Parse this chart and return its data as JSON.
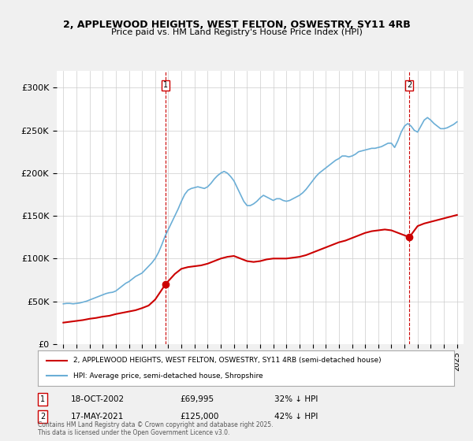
{
  "title_line1": "2, APPLEWOOD HEIGHTS, WEST FELTON, OSWESTRY, SY11 4RB",
  "title_line2": "Price paid vs. HM Land Registry's House Price Index (HPI)",
  "ylabel": "",
  "background_color": "#f0f0f0",
  "plot_bg_color": "#ffffff",
  "red_line_label": "2, APPLEWOOD HEIGHTS, WEST FELTON, OSWESTRY, SY11 4RB (semi-detached house)",
  "blue_line_label": "HPI: Average price, semi-detached house, Shropshire",
  "annotations": [
    {
      "num": "1",
      "date": "18-OCT-2002",
      "price": "£69,995",
      "hpi": "32% ↓ HPI",
      "x": 2002.79,
      "y_red": 69995
    },
    {
      "num": "2",
      "date": "17-MAY-2021",
      "price": "£125,000",
      "hpi": "42% ↓ HPI",
      "x": 2021.37,
      "y_red": 125000
    }
  ],
  "copyright_text": "Contains HM Land Registry data © Crown copyright and database right 2025.\nThis data is licensed under the Open Government Licence v3.0.",
  "ylim": [
    0,
    320000
  ],
  "xlim_start": 1994.5,
  "xlim_end": 2025.5,
  "yticks": [
    0,
    50000,
    100000,
    150000,
    200000,
    250000,
    300000
  ],
  "ytick_labels": [
    "£0",
    "£50K",
    "£100K",
    "£150K",
    "£200K",
    "£250K",
    "£300K"
  ],
  "xticks": [
    1995,
    1996,
    1997,
    1998,
    1999,
    2000,
    2001,
    2002,
    2003,
    2004,
    2005,
    2006,
    2007,
    2008,
    2009,
    2010,
    2011,
    2012,
    2013,
    2014,
    2015,
    2016,
    2017,
    2018,
    2019,
    2020,
    2021,
    2022,
    2023,
    2024,
    2025
  ],
  "red_color": "#cc0000",
  "blue_color": "#6baed6",
  "marker_color_red": "#cc0000",
  "grid_color": "#cccccc",
  "hpi_data": {
    "years": [
      1995.0,
      1995.25,
      1995.5,
      1995.75,
      1996.0,
      1996.25,
      1996.5,
      1996.75,
      1997.0,
      1997.25,
      1997.5,
      1997.75,
      1998.0,
      1998.25,
      1998.5,
      1998.75,
      1999.0,
      1999.25,
      1999.5,
      1999.75,
      2000.0,
      2000.25,
      2000.5,
      2000.75,
      2001.0,
      2001.25,
      2001.5,
      2001.75,
      2002.0,
      2002.25,
      2002.5,
      2002.75,
      2003.0,
      2003.25,
      2003.5,
      2003.75,
      2004.0,
      2004.25,
      2004.5,
      2004.75,
      2005.0,
      2005.25,
      2005.5,
      2005.75,
      2006.0,
      2006.25,
      2006.5,
      2006.75,
      2007.0,
      2007.25,
      2007.5,
      2007.75,
      2008.0,
      2008.25,
      2008.5,
      2008.75,
      2009.0,
      2009.25,
      2009.5,
      2009.75,
      2010.0,
      2010.25,
      2010.5,
      2010.75,
      2011.0,
      2011.25,
      2011.5,
      2011.75,
      2012.0,
      2012.25,
      2012.5,
      2012.75,
      2013.0,
      2013.25,
      2013.5,
      2013.75,
      2014.0,
      2014.25,
      2014.5,
      2014.75,
      2015.0,
      2015.25,
      2015.5,
      2015.75,
      2016.0,
      2016.25,
      2016.5,
      2016.75,
      2017.0,
      2017.25,
      2017.5,
      2017.75,
      2018.0,
      2018.25,
      2018.5,
      2018.75,
      2019.0,
      2019.25,
      2019.5,
      2019.75,
      2020.0,
      2020.25,
      2020.5,
      2020.75,
      2021.0,
      2021.25,
      2021.5,
      2021.75,
      2022.0,
      2022.25,
      2022.5,
      2022.75,
      2023.0,
      2023.25,
      2023.5,
      2023.75,
      2024.0,
      2024.25,
      2024.5,
      2024.75,
      2025.0
    ],
    "values": [
      47000,
      47500,
      47500,
      47000,
      47500,
      48000,
      49000,
      50000,
      51500,
      53000,
      54500,
      56000,
      57500,
      59000,
      60000,
      60500,
      62000,
      65000,
      68000,
      71000,
      73000,
      76000,
      79000,
      81000,
      83000,
      87000,
      91000,
      95000,
      100000,
      107000,
      116000,
      126000,
      134000,
      142000,
      150000,
      158000,
      167000,
      175000,
      180000,
      182000,
      183000,
      184000,
      183000,
      182000,
      184000,
      188000,
      193000,
      197000,
      200000,
      202000,
      200000,
      196000,
      191000,
      183000,
      175000,
      167000,
      162000,
      162000,
      164000,
      167000,
      171000,
      174000,
      172000,
      170000,
      168000,
      170000,
      170000,
      168000,
      167000,
      168000,
      170000,
      172000,
      174000,
      177000,
      181000,
      186000,
      191000,
      196000,
      200000,
      203000,
      206000,
      209000,
      212000,
      215000,
      217000,
      220000,
      220000,
      219000,
      220000,
      222000,
      225000,
      226000,
      227000,
      228000,
      229000,
      229000,
      230000,
      231000,
      233000,
      235000,
      235000,
      230000,
      238000,
      248000,
      255000,
      258000,
      255000,
      250000,
      248000,
      255000,
      262000,
      265000,
      262000,
      258000,
      255000,
      252000,
      252000,
      253000,
      255000,
      257000,
      260000
    ]
  },
  "price_paid_data": {
    "years": [
      1995.0,
      1995.5,
      1996.0,
      1996.5,
      1997.0,
      1997.5,
      1998.0,
      1998.5,
      1999.0,
      1999.5,
      2000.0,
      2000.5,
      2001.0,
      2001.5,
      2002.0,
      2002.79,
      2003.5,
      2004.0,
      2004.5,
      2005.0,
      2005.5,
      2006.0,
      2006.5,
      2007.0,
      2007.5,
      2008.0,
      2008.5,
      2009.0,
      2009.5,
      2010.0,
      2010.5,
      2011.0,
      2011.5,
      2012.0,
      2012.5,
      2013.0,
      2013.5,
      2014.0,
      2014.5,
      2015.0,
      2015.5,
      2016.0,
      2016.5,
      2017.0,
      2017.5,
      2018.0,
      2018.5,
      2019.0,
      2019.5,
      2020.0,
      2021.37,
      2022.0,
      2022.5,
      2023.0,
      2023.5,
      2024.0,
      2024.5,
      2025.0
    ],
    "values": [
      25000,
      26000,
      27000,
      28000,
      29500,
      30500,
      32000,
      33000,
      35000,
      36500,
      38000,
      39500,
      42000,
      45000,
      52000,
      69995,
      82000,
      88000,
      90000,
      91000,
      92000,
      94000,
      97000,
      100000,
      102000,
      103000,
      100000,
      97000,
      96000,
      97000,
      99000,
      100000,
      100000,
      100000,
      101000,
      102000,
      104000,
      107000,
      110000,
      113000,
      116000,
      119000,
      121000,
      124000,
      127000,
      130000,
      132000,
      133000,
      134000,
      133000,
      125000,
      138000,
      141000,
      143000,
      145000,
      147000,
      149000,
      151000
    ]
  }
}
